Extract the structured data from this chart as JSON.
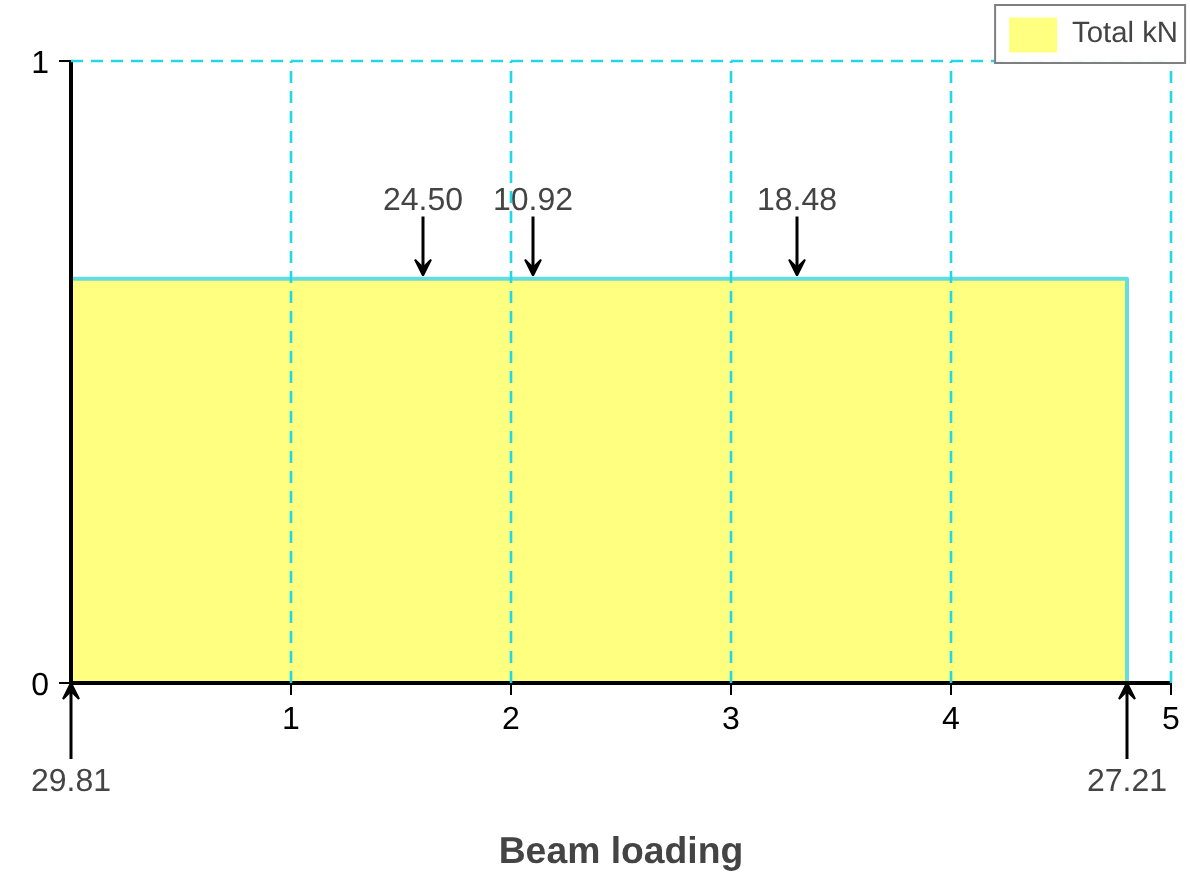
{
  "chart_data": {
    "type": "area",
    "title": "Beam loading",
    "series": [
      {
        "name": "Total kN",
        "color": "#ffff80",
        "x": [
          0,
          4.8
        ],
        "values": [
          0.65,
          0.65
        ]
      }
    ],
    "xlim": [
      0,
      5
    ],
    "xticks": [
      1,
      2,
      3,
      4,
      5
    ],
    "ylim": [
      0,
      1
    ],
    "yticks": [
      0,
      1
    ],
    "grid": true,
    "legend": "top right",
    "annotations": [
      {
        "text": "24.50",
        "x": 1.6,
        "y": 0.65
      },
      {
        "text": "10.92",
        "x": 2.1,
        "y": 0.65
      },
      {
        "text": "18.48",
        "x": 3.3,
        "y": 0.65
      },
      {
        "text": "29.81",
        "x": 0,
        "y": 0
      },
      {
        "text": "27.21",
        "x": 4.8,
        "y": 0
      }
    ]
  }
}
